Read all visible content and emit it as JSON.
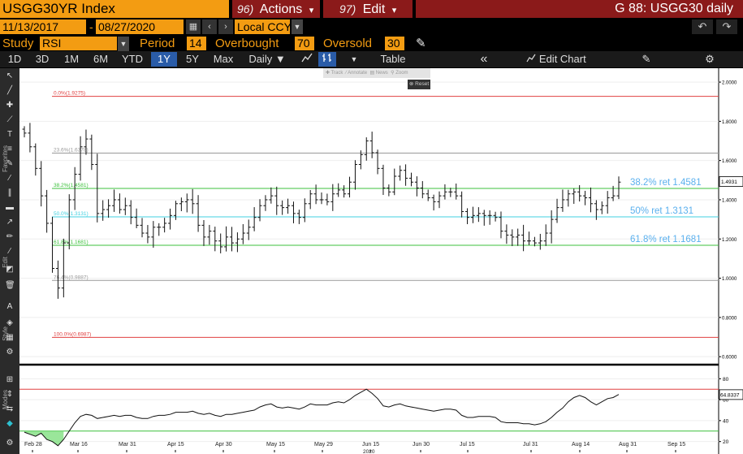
{
  "header": {
    "ticker": "USGG30YR Index",
    "actions": {
      "num": "96)",
      "label": "Actions",
      "arrow": "▾"
    },
    "edit": {
      "num": "97)",
      "label": "Edit",
      "arrow": "▾"
    },
    "title": "G 88: USGG30 daily"
  },
  "controls": {
    "start_date": "11/13/2017",
    "range_sep": "-",
    "end_date": "08/27/2020",
    "calendar_icon": "calendar-icon",
    "prev": "‹",
    "next": "›",
    "currency": "Local CCY",
    "undo": "↶",
    "redo": "↷"
  },
  "study": {
    "study_label": "Study",
    "study_value": "RSI",
    "period_label": "Period",
    "period_value": "14",
    "overbought_label": "Overbought",
    "overbought_value": "70",
    "oversold_label": "Oversold",
    "oversold_value": "30",
    "pen_icon": "pen-icon"
  },
  "toolbar": {
    "periods": [
      "1D",
      "3D",
      "1M",
      "6M",
      "YTD",
      "1Y",
      "5Y",
      "Max"
    ],
    "active_period": "1Y",
    "frequency": "Daily ▼",
    "table": "Table",
    "collapse": "«",
    "edit_chart": "Edit Chart",
    "gear": "gear-icon"
  },
  "side_tools": {
    "favorites_label": "Favorites",
    "edit_label": "Edit",
    "style_label": "Style",
    "modes_label": "Modes"
  },
  "mini_toolbar": {
    "items": [
      "Track",
      "Annotate",
      "News",
      "Zoom"
    ],
    "reset": "Reset"
  },
  "colors": {
    "orange": "#f39c12",
    "dark_red": "#8b1a1a",
    "active_blue": "#2a5ca8",
    "fib_red": "#e04040",
    "fib_green": "#3cc03c",
    "fib_cyan": "#40d0e0",
    "fib_gray": "#999999",
    "ann_blue": "#5ab0ee"
  },
  "chart_data": [
    {
      "type": "ohlc",
      "y_ticks": [
        "2.0000",
        "1.8000",
        "1.6000",
        "1.4000",
        "1.2000",
        "1.0000",
        "0.8000",
        "0.6000"
      ],
      "ylim": [
        0.58,
        2.05
      ],
      "last_value": "1.4931",
      "x_ticks": [
        "Feb 28",
        "Mar 16",
        "Mar 31",
        "Apr 15",
        "Apr 30",
        "May 15",
        "May 29",
        "Jun 15",
        "Jun 30",
        "Jul 15",
        "Jul 31",
        "Aug 14",
        "Aug 31",
        "Sep 15"
      ],
      "x_year": "2020",
      "fib_levels": [
        {
          "label": "0.0%(1.9275)",
          "value": 1.9275,
          "color": "#e04040"
        },
        {
          "label": "23.6%(1.6378)",
          "value": 1.6378,
          "color": "#999999"
        },
        {
          "label": "38.2%(1.4581)",
          "value": 1.4581,
          "color": "#3cc03c"
        },
        {
          "label": "50.0%(1.3131)",
          "value": 1.3131,
          "color": "#40d0e0"
        },
        {
          "label": "61.8%(1.1681)",
          "value": 1.1681,
          "color": "#3cc03c"
        },
        {
          "label": "76.4%(0.9887)",
          "value": 0.9887,
          "color": "#999999"
        },
        {
          "label": "100.0%(0.6987)",
          "value": 0.6987,
          "color": "#e04040"
        }
      ],
      "annotations": [
        {
          "text": "38.2% ret 1.4581",
          "value": 1.4581
        },
        {
          "text": "50% ret 1.3131",
          "value": 1.3131
        },
        {
          "text": "61.8% ret 1.1681",
          "value": 1.1681
        }
      ],
      "closes": [
        1.74,
        1.67,
        1.56,
        1.42,
        1.28,
        1.05,
        0.95,
        1.18,
        1.4,
        1.53,
        1.67,
        1.71,
        1.58,
        1.33,
        1.35,
        1.37,
        1.4,
        1.35,
        1.37,
        1.31,
        1.27,
        1.23,
        1.21,
        1.26,
        1.26,
        1.28,
        1.32,
        1.38,
        1.39,
        1.4,
        1.38,
        1.27,
        1.21,
        1.24,
        1.19,
        1.16,
        1.21,
        1.18,
        1.2,
        1.23,
        1.26,
        1.31,
        1.37,
        1.4,
        1.42,
        1.37,
        1.36,
        1.37,
        1.33,
        1.31,
        1.38,
        1.43,
        1.4,
        1.4,
        1.39,
        1.43,
        1.45,
        1.43,
        1.49,
        1.58,
        1.63,
        1.7,
        1.64,
        1.56,
        1.46,
        1.44,
        1.52,
        1.55,
        1.51,
        1.49,
        1.46,
        1.43,
        1.41,
        1.39,
        1.42,
        1.44,
        1.44,
        1.42,
        1.34,
        1.31,
        1.32,
        1.33,
        1.32,
        1.32,
        1.31,
        1.24,
        1.22,
        1.21,
        1.22,
        1.19,
        1.19,
        1.18,
        1.19,
        1.23,
        1.3,
        1.36,
        1.4,
        1.43,
        1.44,
        1.42,
        1.41,
        1.38,
        1.35,
        1.37,
        1.41,
        1.42,
        1.49
      ]
    },
    {
      "type": "line",
      "name": "RSI",
      "y_ticks": [
        "80",
        "60",
        "40",
        "20"
      ],
      "ylim": [
        12,
        88
      ],
      "overbought": 70,
      "oversold": 30,
      "last_value": "64.8337",
      "values": [
        29,
        27,
        25,
        28,
        22,
        20,
        16,
        22,
        30,
        38,
        44,
        46,
        45,
        42,
        43,
        44,
        45,
        44,
        45,
        45,
        43,
        42,
        42,
        44,
        45,
        45,
        46,
        48,
        48,
        48,
        49,
        47,
        46,
        47,
        45,
        44,
        46,
        46,
        47,
        48,
        49,
        50,
        53,
        55,
        56,
        53,
        52,
        53,
        52,
        51,
        53,
        56,
        55,
        55,
        55,
        57,
        58,
        57,
        60,
        64,
        67,
        70,
        66,
        61,
        54,
        53,
        55,
        56,
        54,
        53,
        52,
        51,
        50,
        49,
        50,
        51,
        51,
        50,
        45,
        43,
        43,
        44,
        44,
        44,
        43,
        39,
        38,
        38,
        38,
        37,
        37,
        36,
        37,
        39,
        43,
        48,
        52,
        58,
        62,
        64,
        62,
        58,
        55,
        58,
        61,
        62,
        65
      ]
    }
  ]
}
